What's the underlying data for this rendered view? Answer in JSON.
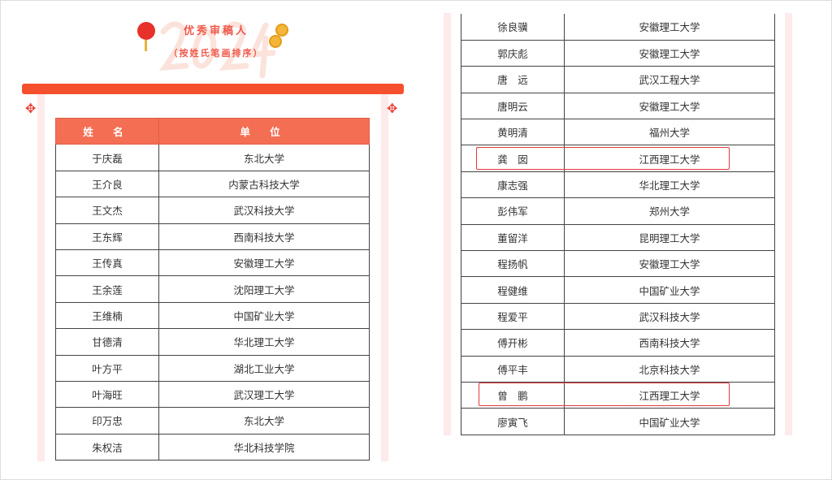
{
  "header": {
    "title": "优秀审稿人",
    "subtitle": "（按姓氏笔画排序）",
    "watermark": "2024"
  },
  "columns": {
    "name": "姓 名",
    "unit": "单 位"
  },
  "accent": "#f5502e",
  "left_rows": [
    [
      "于庆磊",
      "东北大学"
    ],
    [
      "王介良",
      "内蒙古科技大学"
    ],
    [
      "王文杰",
      "武汉科技大学"
    ],
    [
      "王东辉",
      "西南科技大学"
    ],
    [
      "王传真",
      "安徽理工大学"
    ],
    [
      "王余莲",
      "沈阳理工大学"
    ],
    [
      "王维楠",
      "中国矿业大学"
    ],
    [
      "甘德清",
      "华北理工大学"
    ],
    [
      "叶方平",
      "湖北工业大学"
    ],
    [
      "叶海旺",
      "武汉理工大学"
    ],
    [
      "印万忠",
      "东北大学"
    ],
    [
      "朱权洁",
      "华北科技学院"
    ]
  ],
  "right_rows": [
    [
      "徐良骥",
      "安徽理工大学"
    ],
    [
      "郭庆彪",
      "安徽理工大学"
    ],
    [
      "唐　远",
      "武汉工程大学"
    ],
    [
      "唐明云",
      "安徽理工大学"
    ],
    [
      "黄明清",
      "福州大学"
    ],
    [
      "龚　囡",
      "江西理工大学"
    ],
    [
      "康志强",
      "华北理工大学"
    ],
    [
      "彭伟军",
      "郑州大学"
    ],
    [
      "董留洋",
      "昆明理工大学"
    ],
    [
      "程扬帆",
      "安徽理工大学"
    ],
    [
      "程健维",
      "中国矿业大学"
    ],
    [
      "程爱平",
      "武汉科技大学"
    ],
    [
      "傅开彬",
      "西南科技大学"
    ],
    [
      "傅平丰",
      "北京科技大学"
    ],
    [
      "曾　鹏",
      "江西理工大学"
    ],
    [
      "廖寅飞",
      "中国矿业大学"
    ]
  ]
}
